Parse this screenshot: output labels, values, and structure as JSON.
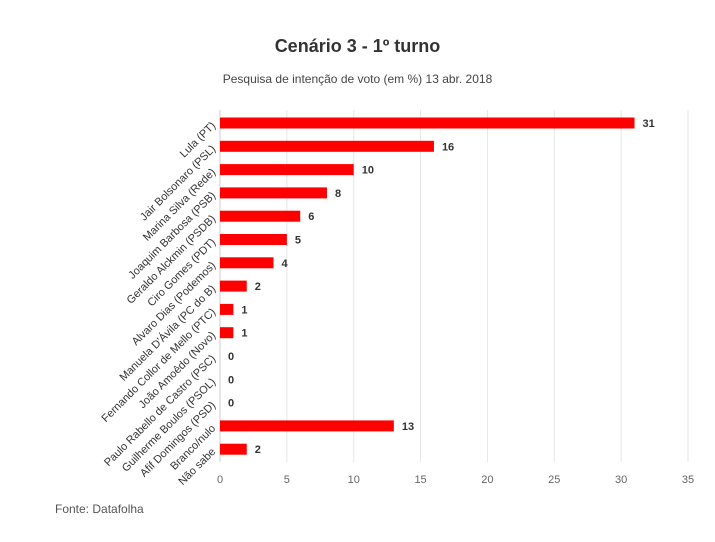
{
  "chart_data": {
    "type": "bar",
    "orientation": "horizontal",
    "title": "Cenário 3 - 1º turno",
    "subtitle": "Pesquisa de intenção de voto (em %) 13 abr. 2018",
    "source": "Fonte: Datafolha",
    "categories": [
      "Lula (PT)",
      "Jair Bolsonaro (PSL)",
      "Marina Silva (Rede)",
      "Joaquim Barbosa (PSB)",
      "Geraldo Alckmin (PSDB)",
      "Ciro Gomes (PDT)",
      "Alvaro Dias (Podemos)",
      "Manuela D'Ávila (PC do B)",
      "Fernando Collor de Mello (PTC)",
      "João Amoêdo (Novo)",
      "Paulo Rabello de Castro (PSC)",
      "Guilherme Boulos (PSOL)",
      "Afif Domingos (PSD)",
      "Branco/nulo",
      "Não sabe"
    ],
    "values": [
      31,
      16,
      10,
      8,
      6,
      5,
      4,
      2,
      1,
      1,
      0,
      0,
      0,
      13,
      2
    ],
    "xlim": [
      0,
      35
    ],
    "xticks": [
      0,
      5,
      10,
      15,
      20,
      25,
      30,
      35
    ],
    "grid": true,
    "bar_color": "#ff0000",
    "legend": "none"
  }
}
